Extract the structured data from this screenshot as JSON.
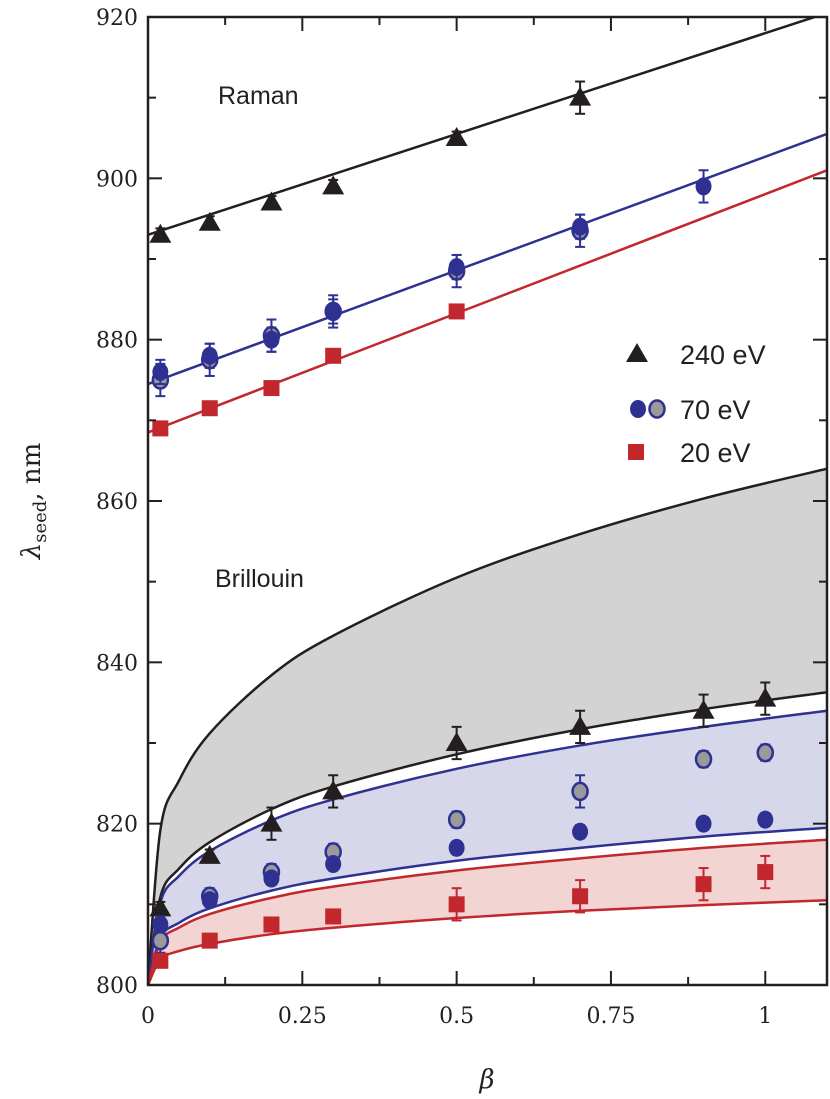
{
  "chart_data": {
    "type": "scatter",
    "xlabel": "β",
    "ylabel_main": "λ",
    "ylabel_sub": "seed",
    "ylabel_unit": ", nm",
    "xlim": [
      0,
      1.1
    ],
    "ylim": [
      800,
      920
    ],
    "xticks": [
      0,
      0.25,
      0.5,
      0.75,
      1
    ],
    "xtick_labels": [
      "0",
      "0.25",
      "0.5",
      "0.75",
      "1"
    ],
    "yticks": [
      800,
      820,
      840,
      860,
      880,
      900,
      920
    ],
    "ytick_labels": [
      "800",
      "820",
      "840",
      "860",
      "880",
      "900",
      "920"
    ],
    "grid": false,
    "legend_position": "right-middle",
    "annotations": {
      "raman": "Raman",
      "brillouin": "Brillouin"
    },
    "legend": [
      {
        "label": "240 eV",
        "marker": "triangle",
        "color": "#231f20"
      },
      {
        "label": "70 eV",
        "marker": "circle-pair",
        "color": "#2e3192",
        "alt_color": "#9a9a9a"
      },
      {
        "label": "20 eV",
        "marker": "square",
        "color": "#c1272d"
      }
    ],
    "colors": {
      "black": "#231f20",
      "blue": "#2e3192",
      "red": "#c1272d",
      "gray_marker": "#9a9a9a",
      "gray_band": "#d3d3d3",
      "blue_band": "#d6d7ea",
      "red_band": "#f2d5d3"
    },
    "raman_fits": [
      {
        "color": "#231f20",
        "x": [
          0,
          1.1
        ],
        "y": [
          893,
          920.5
        ]
      },
      {
        "color": "#2e3192",
        "x": [
          0,
          1.1
        ],
        "y": [
          874.5,
          905.5
        ]
      },
      {
        "color": "#c1272d",
        "x": [
          0,
          1.1
        ],
        "y": [
          868.5,
          901
        ]
      }
    ],
    "brillouin_bands": {
      "x": [
        0,
        0.02,
        0.05,
        0.1,
        0.2,
        0.3,
        0.5,
        0.7,
        0.9,
        1.1
      ],
      "bands": [
        {
          "fill": "#d3d3d3",
          "color": "#231f20",
          "upper": [
            800,
            819.2,
            825.3,
            831.2,
            838.4,
            843.3,
            850.5,
            855.9,
            860.3,
            864
          ],
          "lower": [
            800,
            810.9,
            814.4,
            817.7,
            821.8,
            824.6,
            828.6,
            831.7,
            834.2,
            836.3
          ]
        },
        {
          "fill": "#d6d7ea",
          "color": "#2e3192",
          "upper": [
            800,
            810.2,
            813.5,
            816.6,
            820.4,
            823,
            826.8,
            829.7,
            832,
            834
          ],
          "lower": [
            800,
            805.85,
            807.7,
            809.5,
            811.7,
            813.2,
            815.4,
            817,
            818.4,
            819.5
          ]
        },
        {
          "fill": "#f2d5d3",
          "color": "#c1272d",
          "upper": [
            800,
            805.4,
            807.1,
            808.8,
            810.8,
            812.2,
            814.2,
            815.7,
            817,
            818
          ],
          "lower": [
            800,
            803.15,
            804.2,
            805.1,
            806.3,
            807.1,
            808.3,
            809.2,
            809.9,
            810.5
          ]
        }
      ]
    },
    "series": [
      {
        "name": "240 eV",
        "marker": "triangle",
        "color": "#231f20",
        "group": "Raman",
        "x": [
          0.02,
          0.1,
          0.2,
          0.3,
          0.5,
          0.7
        ],
        "y": [
          893,
          894.5,
          897,
          899,
          905,
          910
        ],
        "err": [
          0.8,
          0.8,
          0.8,
          0.8,
          0.8,
          2
        ]
      },
      {
        "name": "70 eV",
        "marker": "circle-gray",
        "color": "#2e3192",
        "group": "Raman",
        "x": [
          0.02,
          0.1,
          0.2,
          0.3,
          0.5,
          0.7
        ],
        "y": [
          875,
          877.5,
          880.5,
          883.5,
          888.5,
          893.5
        ],
        "err": [
          2,
          2,
          2,
          2,
          2,
          2
        ]
      },
      {
        "name": "70 eV",
        "marker": "circle",
        "color": "#2e3192",
        "group": "Raman",
        "x": [
          0.02,
          0.1,
          0.2,
          0.3,
          0.5,
          0.7,
          0.9
        ],
        "y": [
          876,
          878,
          880,
          883.5,
          889,
          894,
          899
        ],
        "err": [
          1.5,
          1.5,
          1.5,
          1.5,
          1.5,
          1.5,
          2
        ]
      },
      {
        "name": "20 eV",
        "marker": "square",
        "color": "#c1272d",
        "group": "Raman",
        "x": [
          0.02,
          0.1,
          0.2,
          0.3,
          0.5
        ],
        "y": [
          869,
          871.5,
          874,
          878,
          883.5
        ],
        "err": [
          0.8,
          0.8,
          0.8,
          0.8,
          0.8
        ]
      },
      {
        "name": "240 eV",
        "marker": "triangle",
        "color": "#231f20",
        "group": "Brillouin",
        "x": [
          0.02,
          0.1,
          0.2,
          0.3,
          0.5,
          0.7,
          0.9,
          1.0
        ],
        "y": [
          809.5,
          816,
          820,
          824,
          830,
          832,
          834,
          835.5
        ],
        "err": [
          0.8,
          0.8,
          2,
          2,
          2,
          2,
          2,
          2
        ]
      },
      {
        "name": "70 eV",
        "marker": "circle-gray",
        "color": "#2e3192",
        "group": "Brillouin",
        "x": [
          0.02,
          0.1,
          0.2,
          0.3,
          0.5,
          0.7,
          0.9,
          1.0
        ],
        "y": [
          805.5,
          811,
          814,
          816.5,
          820.5,
          824,
          828,
          828.8
        ],
        "err": [
          1.5,
          1,
          1,
          1,
          1,
          2,
          1,
          1
        ]
      },
      {
        "name": "70 eV",
        "marker": "circle",
        "color": "#2e3192",
        "group": "Brillouin",
        "x": [
          0.02,
          0.1,
          0.2,
          0.3,
          0.5,
          0.7,
          0.9,
          1.0
        ],
        "y": [
          807.5,
          810.5,
          813.2,
          815,
          817,
          819,
          820,
          820.5
        ],
        "err": [
          1,
          0.8,
          0.8,
          0.8,
          0.8,
          0.8,
          0.8,
          0.8
        ]
      },
      {
        "name": "20 eV",
        "marker": "square",
        "color": "#c1272d",
        "group": "Brillouin",
        "x": [
          0.02,
          0.1,
          0.2,
          0.3,
          0.5,
          0.7,
          0.9,
          1.0
        ],
        "y": [
          803,
          805.5,
          807.5,
          808.5,
          810,
          811,
          812.5,
          814
        ],
        "err": [
          0.8,
          0.8,
          0.8,
          0.8,
          2,
          2,
          2,
          2
        ]
      }
    ]
  }
}
